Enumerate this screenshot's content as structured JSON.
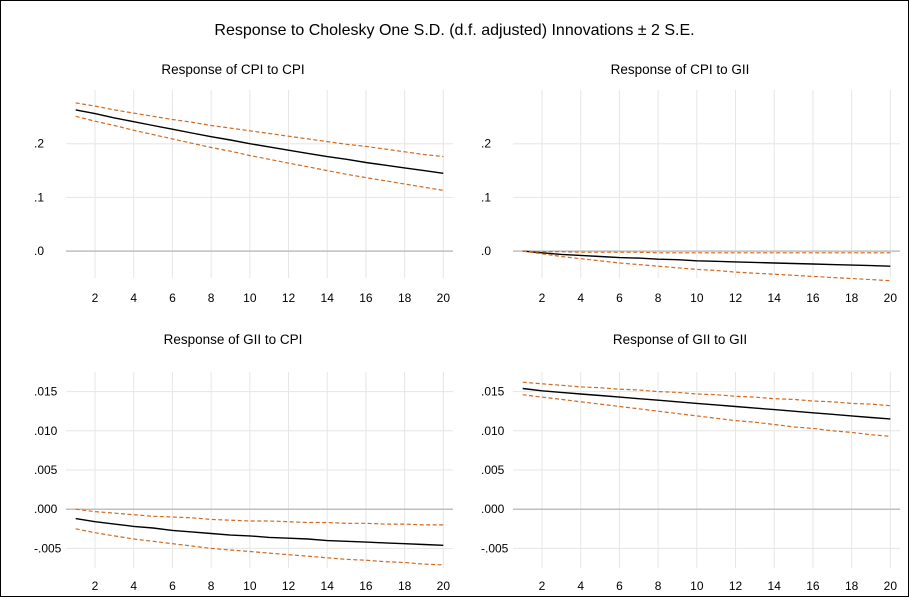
{
  "title": "Response to Cholesky One S.D. (d.f. adjusted) Innovations ± 2 S.E.",
  "colors": {
    "response": "#000000",
    "bands": "#D2691E",
    "grid": "#e6e6e6",
    "zero": "#bfbfbf"
  },
  "chart_data": [
    {
      "type": "line",
      "title": "Response of CPI to CPI",
      "x": [
        1,
        2,
        3,
        4,
        5,
        6,
        7,
        8,
        9,
        10,
        11,
        12,
        13,
        14,
        15,
        16,
        17,
        18,
        19,
        20
      ],
      "x_ticks": [
        2,
        4,
        6,
        8,
        10,
        12,
        14,
        16,
        18,
        20
      ],
      "x_tick_labels": [
        "2",
        "4",
        "6",
        "8",
        "10",
        "12",
        "14",
        "16",
        "18",
        "20"
      ],
      "ylim": [
        -0.05,
        0.3
      ],
      "y_ticks": [
        0.0,
        0.1,
        0.2
      ],
      "y_tick_labels": [
        ".0",
        ".1",
        ".2"
      ],
      "grid": true,
      "series": [
        {
          "role": "response",
          "values": [
            0.263,
            0.256,
            0.248,
            0.241,
            0.234,
            0.227,
            0.22,
            0.213,
            0.207,
            0.2,
            0.194,
            0.188,
            0.182,
            0.176,
            0.171,
            0.165,
            0.16,
            0.155,
            0.15,
            0.145
          ]
        },
        {
          "role": "upper_band",
          "values": [
            0.276,
            0.27,
            0.263,
            0.257,
            0.251,
            0.245,
            0.24,
            0.234,
            0.229,
            0.224,
            0.219,
            0.214,
            0.209,
            0.204,
            0.199,
            0.195,
            0.19,
            0.185,
            0.18,
            0.176
          ]
        },
        {
          "role": "lower_band",
          "values": [
            0.251,
            0.242,
            0.234,
            0.225,
            0.217,
            0.209,
            0.201,
            0.193,
            0.186,
            0.178,
            0.171,
            0.164,
            0.157,
            0.15,
            0.143,
            0.137,
            0.131,
            0.125,
            0.119,
            0.113
          ]
        }
      ]
    },
    {
      "type": "line",
      "title": "Response of CPI to GII",
      "x": [
        1,
        2,
        3,
        4,
        5,
        6,
        7,
        8,
        9,
        10,
        11,
        12,
        13,
        14,
        15,
        16,
        17,
        18,
        19,
        20
      ],
      "x_ticks": [
        2,
        4,
        6,
        8,
        10,
        12,
        14,
        16,
        18,
        20
      ],
      "x_tick_labels": [
        "2",
        "4",
        "6",
        "8",
        "10",
        "12",
        "14",
        "16",
        "18",
        "20"
      ],
      "ylim": [
        -0.05,
        0.3
      ],
      "y_ticks": [
        0.0,
        0.1,
        0.2
      ],
      "y_tick_labels": [
        ".0",
        ".1",
        ".2"
      ],
      "grid": true,
      "series": [
        {
          "role": "response",
          "values": [
            0.0,
            -0.003,
            -0.006,
            -0.008,
            -0.01,
            -0.012,
            -0.013,
            -0.015,
            -0.016,
            -0.018,
            -0.019,
            -0.02,
            -0.021,
            -0.022,
            -0.023,
            -0.024,
            -0.025,
            -0.026,
            -0.027,
            -0.028
          ]
        },
        {
          "role": "upper_band",
          "values": [
            0.0,
            -0.001,
            -0.001,
            -0.002,
            -0.002,
            -0.002,
            -0.002,
            -0.003,
            -0.003,
            -0.003,
            -0.003,
            -0.003,
            -0.003,
            -0.003,
            -0.003,
            -0.003,
            -0.003,
            -0.003,
            -0.003,
            -0.003
          ]
        },
        {
          "role": "lower_band",
          "values": [
            0.0,
            -0.005,
            -0.01,
            -0.014,
            -0.018,
            -0.022,
            -0.025,
            -0.028,
            -0.031,
            -0.034,
            -0.036,
            -0.039,
            -0.041,
            -0.043,
            -0.045,
            -0.047,
            -0.049,
            -0.051,
            -0.053,
            -0.055
          ]
        }
      ]
    },
    {
      "type": "line",
      "title": "Response of GII to CPI",
      "x": [
        1,
        2,
        3,
        4,
        5,
        6,
        7,
        8,
        9,
        10,
        11,
        12,
        13,
        14,
        15,
        16,
        17,
        18,
        19,
        20
      ],
      "x_ticks": [
        2,
        4,
        6,
        8,
        10,
        12,
        14,
        16,
        18,
        20
      ],
      "x_tick_labels": [
        "2",
        "4",
        "6",
        "8",
        "10",
        "12",
        "14",
        "16",
        "18",
        "20"
      ],
      "ylim": [
        -0.0075,
        0.0175
      ],
      "y_ticks": [
        -0.005,
        0.0,
        0.005,
        0.01,
        0.015
      ],
      "y_tick_labels": [
        "-.005",
        ".000",
        ".005",
        ".010",
        ".015"
      ],
      "grid": true,
      "series": [
        {
          "role": "response",
          "values": [
            -0.0012,
            -0.0016,
            -0.0019,
            -0.0022,
            -0.0024,
            -0.0027,
            -0.0029,
            -0.0031,
            -0.0033,
            -0.0034,
            -0.0036,
            -0.0037,
            -0.0038,
            -0.004,
            -0.0041,
            -0.0042,
            -0.0043,
            -0.0044,
            -0.0045,
            -0.0046
          ]
        },
        {
          "role": "upper_band",
          "values": [
            0.0,
            -0.0003,
            -0.0005,
            -0.0007,
            -0.0009,
            -0.001,
            -0.0011,
            -0.0013,
            -0.0014,
            -0.0015,
            -0.0015,
            -0.0016,
            -0.0017,
            -0.0017,
            -0.0018,
            -0.0018,
            -0.0019,
            -0.0019,
            -0.002,
            -0.002
          ]
        },
        {
          "role": "lower_band",
          "values": [
            -0.0025,
            -0.003,
            -0.0034,
            -0.0038,
            -0.0041,
            -0.0044,
            -0.0047,
            -0.005,
            -0.0052,
            -0.0054,
            -0.0056,
            -0.0058,
            -0.006,
            -0.0062,
            -0.0064,
            -0.0065,
            -0.0067,
            -0.0068,
            -0.007,
            -0.0071
          ]
        }
      ]
    },
    {
      "type": "line",
      "title": "Response of GII to GII",
      "x": [
        1,
        2,
        3,
        4,
        5,
        6,
        7,
        8,
        9,
        10,
        11,
        12,
        13,
        14,
        15,
        16,
        17,
        18,
        19,
        20
      ],
      "x_ticks": [
        2,
        4,
        6,
        8,
        10,
        12,
        14,
        16,
        18,
        20
      ],
      "x_tick_labels": [
        "2",
        "4",
        "6",
        "8",
        "10",
        "12",
        "14",
        "16",
        "18",
        "20"
      ],
      "ylim": [
        -0.0075,
        0.0175
      ],
      "y_ticks": [
        -0.005,
        0.0,
        0.005,
        0.01,
        0.015
      ],
      "y_tick_labels": [
        "-.005",
        ".000",
        ".005",
        ".010",
        ".015"
      ],
      "grid": true,
      "series": [
        {
          "role": "response",
          "values": [
            0.0154,
            0.0151,
            0.0149,
            0.0147,
            0.0145,
            0.0143,
            0.0141,
            0.0139,
            0.0137,
            0.0135,
            0.0133,
            0.0131,
            0.0129,
            0.0127,
            0.0125,
            0.0123,
            0.0121,
            0.0119,
            0.0117,
            0.0115
          ]
        },
        {
          "role": "upper_band",
          "values": [
            0.0162,
            0.016,
            0.0158,
            0.0156,
            0.0155,
            0.0153,
            0.0152,
            0.015,
            0.0149,
            0.0147,
            0.0146,
            0.0144,
            0.0143,
            0.0141,
            0.014,
            0.0138,
            0.0137,
            0.0135,
            0.0134,
            0.0132
          ]
        },
        {
          "role": "lower_band",
          "values": [
            0.0146,
            0.0143,
            0.014,
            0.0137,
            0.0134,
            0.0131,
            0.0128,
            0.0125,
            0.0122,
            0.0119,
            0.0116,
            0.0113,
            0.0111,
            0.0108,
            0.0105,
            0.0103,
            0.01,
            0.0098,
            0.0095,
            0.0093
          ]
        }
      ]
    }
  ]
}
